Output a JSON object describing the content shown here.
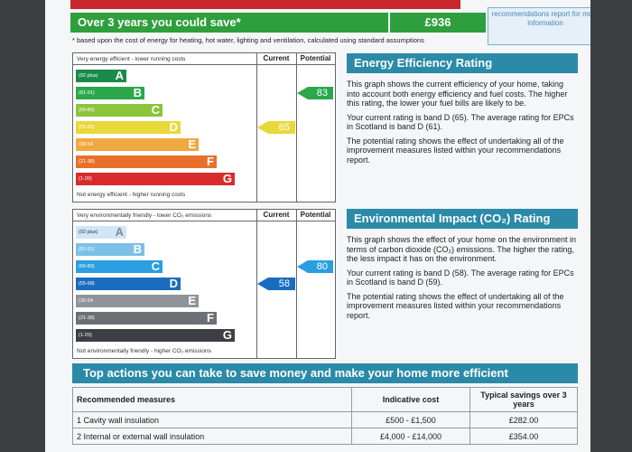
{
  "banner": {
    "savings_label": "Over 3 years you could save*",
    "savings_value": "£936",
    "side_note": "recommendations report for more information"
  },
  "footnote": "* based upon the cost of energy for heating, hot water, lighting and ventilation, calculated using standard assumptions",
  "energy_chart": {
    "top_caption": "Very energy efficient - lower running costs",
    "bottom_caption": "Not energy efficient - higher running costs",
    "col_current": "Current",
    "col_potential": "Potential",
    "bands": [
      {
        "range": "(92 plus)",
        "letter": "A",
        "color": "#1a8a4a"
      },
      {
        "range": "(81-91)",
        "letter": "B",
        "color": "#2aa84a"
      },
      {
        "range": "(69-80)",
        "letter": "C",
        "color": "#8cc43c"
      },
      {
        "range": "(55-68)",
        "letter": "D",
        "color": "#e8d83a"
      },
      {
        "range": "(39-54",
        "letter": "E",
        "color": "#f0a840"
      },
      {
        "range": "(21-38)",
        "letter": "F",
        "color": "#e8702a"
      },
      {
        "range": "(1-20)",
        "letter": "G",
        "color": "#d82c2c"
      }
    ],
    "current": {
      "value": "65",
      "band": "D",
      "color": "#e8d83a"
    },
    "potential": {
      "value": "83",
      "band": "B",
      "color": "#2aa84a"
    }
  },
  "co2_chart": {
    "top_caption": "Very environmentally friendly - lower CO₂ emissions",
    "bottom_caption": "Not environmentally friendly - higher CO₂ emissions",
    "col_current": "Current",
    "col_potential": "Potential",
    "bands": [
      {
        "range": "(92 plus)",
        "letter": "A",
        "color": "#cfe6f6"
      },
      {
        "range": "(81-91)",
        "letter": "B",
        "color": "#7cc0e8"
      },
      {
        "range": "(69-80)",
        "letter": "C",
        "color": "#2a9ee0"
      },
      {
        "range": "(55-68)",
        "letter": "D",
        "color": "#1a6cc0"
      },
      {
        "range": "(39-54",
        "letter": "E",
        "color": "#8e949a"
      },
      {
        "range": "(21-38)",
        "letter": "F",
        "color": "#6a7076"
      },
      {
        "range": "(1-20)",
        "letter": "G",
        "color": "#3c4044"
      }
    ],
    "current": {
      "value": "58",
      "band": "D",
      "color": "#1a6cc0"
    },
    "potential": {
      "value": "80",
      "band": "C",
      "color": "#2a9ee0"
    }
  },
  "energy_panel": {
    "title": "Energy Efficiency Rating",
    "p1": "This graph shows the current efficiency of your home, taking into account both energy efficiency and fuel costs. The higher this rating, the lower your fuel bills are likely to be.",
    "p2": "Your current rating is band D (65). The average rating for EPCs in Scotland is band D (61).",
    "p3": "The potential rating shows the effect of undertaking all of the improvement measures listed within your recommendations report."
  },
  "env_panel": {
    "title": "Environmental Impact (CO₂) Rating",
    "p1": "This graph shows the effect of your home on the environment in terms of carbon dioxide (CO₂) emissions. The higher the rating, the less impact it has on the environment.",
    "p2": "Your current rating is band D (58). The average rating for EPCs in Scotland is band D (59).",
    "p3": "The potential rating shows the effect of undertaking all of the improvement measures listed within your recommendations report."
  },
  "actions": {
    "title": "Top actions you can take to save money and make your home more efficient",
    "headers": [
      "Recommended measures",
      "Indicative cost",
      "Typical savings over 3 years"
    ],
    "rows": [
      [
        "1 Cavity wall insulation",
        "£500 - £1,500",
        "£282.00"
      ],
      [
        "2 Internal or external wall insulation",
        "£4,000 - £14,000",
        "£354.00"
      ]
    ]
  }
}
